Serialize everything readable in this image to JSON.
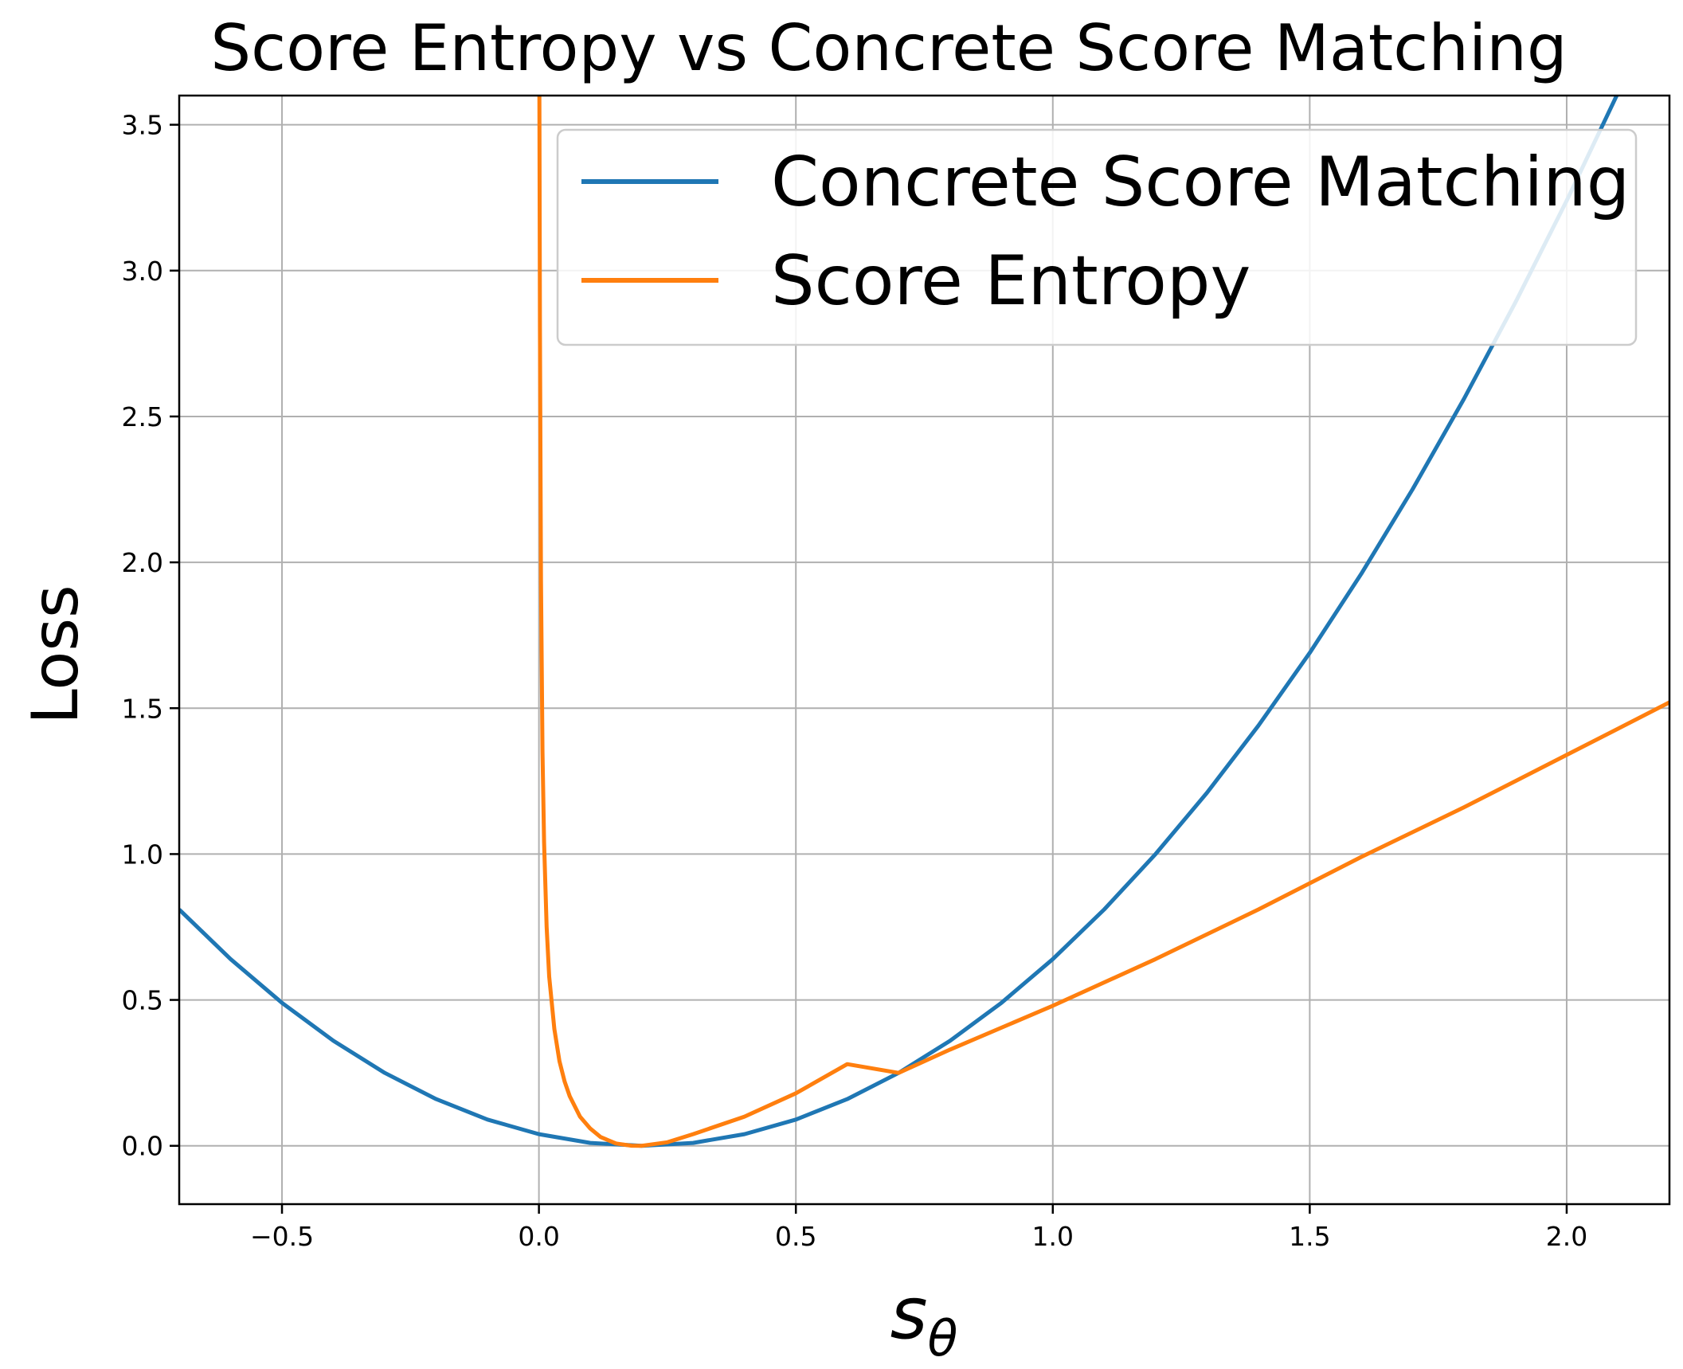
{
  "chart_data": {
    "type": "line",
    "title": "Score Entropy vs Concrete Score Matching",
    "xlabel": "s",
    "xlabel_subscript": "θ",
    "ylabel": "Loss",
    "xlim": [
      -0.7,
      2.2
    ],
    "ylim": [
      -0.2,
      3.6
    ],
    "grid": true,
    "legend_position": "top-right",
    "x_ticks": [
      {
        "value": -0.5,
        "label": "−0.5"
      },
      {
        "value": 0.0,
        "label": "0.0"
      },
      {
        "value": 0.5,
        "label": "0.5"
      },
      {
        "value": 1.0,
        "label": "1.0"
      },
      {
        "value": 1.5,
        "label": "1.5"
      },
      {
        "value": 2.0,
        "label": "2.0"
      }
    ],
    "y_ticks": [
      {
        "value": 0.0,
        "label": "0.0"
      },
      {
        "value": 0.5,
        "label": "0.5"
      },
      {
        "value": 1.0,
        "label": "1.0"
      },
      {
        "value": 1.5,
        "label": "1.5"
      },
      {
        "value": 2.0,
        "label": "2.0"
      },
      {
        "value": 2.5,
        "label": "2.5"
      },
      {
        "value": 3.0,
        "label": "3.0"
      },
      {
        "value": 3.5,
        "label": "3.5"
      }
    ],
    "series": [
      {
        "name": "Concrete Score Matching",
        "color": "#1f77b4",
        "x": [
          -0.7,
          -0.6,
          -0.5,
          -0.4,
          -0.3,
          -0.2,
          -0.1,
          0.0,
          0.1,
          0.2,
          0.3,
          0.4,
          0.5,
          0.6,
          0.7,
          0.8,
          0.9,
          1.0,
          1.1,
          1.2,
          1.3,
          1.4,
          1.5,
          1.6,
          1.7,
          1.8,
          1.9,
          2.0,
          2.1
        ],
        "y": [
          0.81,
          0.64,
          0.49,
          0.36,
          0.25,
          0.16,
          0.09,
          0.04,
          0.01,
          0.0,
          0.01,
          0.04,
          0.09,
          0.16,
          0.25,
          0.36,
          0.49,
          0.64,
          0.81,
          1.0,
          1.21,
          1.44,
          1.69,
          1.96,
          2.25,
          2.56,
          2.89,
          3.24,
          3.61
        ]
      },
      {
        "name": "Score Entropy",
        "color": "#ff7f0e",
        "x": [
          0.00095,
          0.002,
          0.004,
          0.007,
          0.01,
          0.015,
          0.02,
          0.03,
          0.04,
          0.05,
          0.06,
          0.08,
          0.1,
          0.12,
          0.15,
          0.18,
          0.2,
          0.25,
          0.3,
          0.4,
          0.5,
          0.6,
          0.7,
          0.8,
          1.0,
          1.2,
          1.4,
          1.6,
          1.8,
          2.0,
          2.2
        ],
        "y": [
          3.6,
          2.8,
          1.94,
          1.35,
          1.04,
          0.75,
          0.58,
          0.4,
          0.29,
          0.22,
          0.17,
          0.1,
          0.059,
          0.03,
          0.008,
          0.0005,
          0.0,
          0.012,
          0.04,
          0.1,
          0.18,
          0.28,
          0.25,
          0.33,
          0.48,
          0.64,
          0.81,
          0.99,
          1.16,
          1.34,
          1.52
        ]
      }
    ]
  }
}
